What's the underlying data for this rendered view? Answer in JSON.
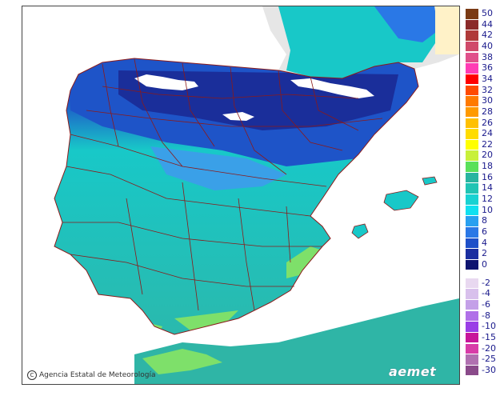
{
  "map": {
    "credit": "Agencia Estatal de Meteorología",
    "logo": "aemet",
    "colors": {
      "sea_land_outside": "#e6e6e6",
      "sea": "#ffffff",
      "land_warm": "#2fb5a6",
      "land_mild": "#18c8c8",
      "land_cool": "#3aa0e8",
      "land_cold": "#1e54c8",
      "land_freezing": "#1a2e9a",
      "snow_white": "#ffffff",
      "coast_green": "#7ee06a",
      "boundary": "#8b1a1a"
    }
  },
  "legend": {
    "positive": [
      {
        "label": "50",
        "color": "#7a3a14"
      },
      {
        "label": "44",
        "color": "#8b2a2a"
      },
      {
        "label": "42",
        "color": "#b03a3a"
      },
      {
        "label": "40",
        "color": "#d04a6a"
      },
      {
        "label": "38",
        "color": "#e0508a"
      },
      {
        "label": "36",
        "color": "#ff3cb4"
      },
      {
        "label": "34",
        "color": "#ff0000"
      },
      {
        "label": "32",
        "color": "#ff4a00"
      },
      {
        "label": "30",
        "color": "#ff7a00"
      },
      {
        "label": "28",
        "color": "#ff9a00"
      },
      {
        "label": "26",
        "color": "#ffc000"
      },
      {
        "label": "24",
        "color": "#ffdc00"
      },
      {
        "label": "22",
        "color": "#ffff00"
      },
      {
        "label": "20",
        "color": "#c8f03a"
      },
      {
        "label": "18",
        "color": "#5ae05a"
      },
      {
        "label": "16",
        "color": "#28b4a0"
      },
      {
        "label": "14",
        "color": "#20c4b4"
      },
      {
        "label": "12",
        "color": "#18d2d2"
      },
      {
        "label": "10",
        "color": "#10e0f0"
      },
      {
        "label": "8",
        "color": "#28a0f0"
      },
      {
        "label": "6",
        "color": "#2a78e6"
      },
      {
        "label": "4",
        "color": "#1e50c8"
      },
      {
        "label": "2",
        "color": "#1a2ea0"
      },
      {
        "label": "0",
        "color": "#0e1470"
      }
    ],
    "negative": [
      {
        "label": "-2",
        "color": "#e8d8f0"
      },
      {
        "label": "-4",
        "color": "#d8c0ec"
      },
      {
        "label": "-6",
        "color": "#c4a0e8"
      },
      {
        "label": "-8",
        "color": "#b070e8"
      },
      {
        "label": "-10",
        "color": "#9a3ee6"
      },
      {
        "label": "-15",
        "color": "#c8169a"
      },
      {
        "label": "-20",
        "color": "#d83ca8"
      },
      {
        "label": "-25",
        "color": "#b070b0"
      },
      {
        "label": "-30",
        "color": "#8a4a8a"
      }
    ]
  }
}
